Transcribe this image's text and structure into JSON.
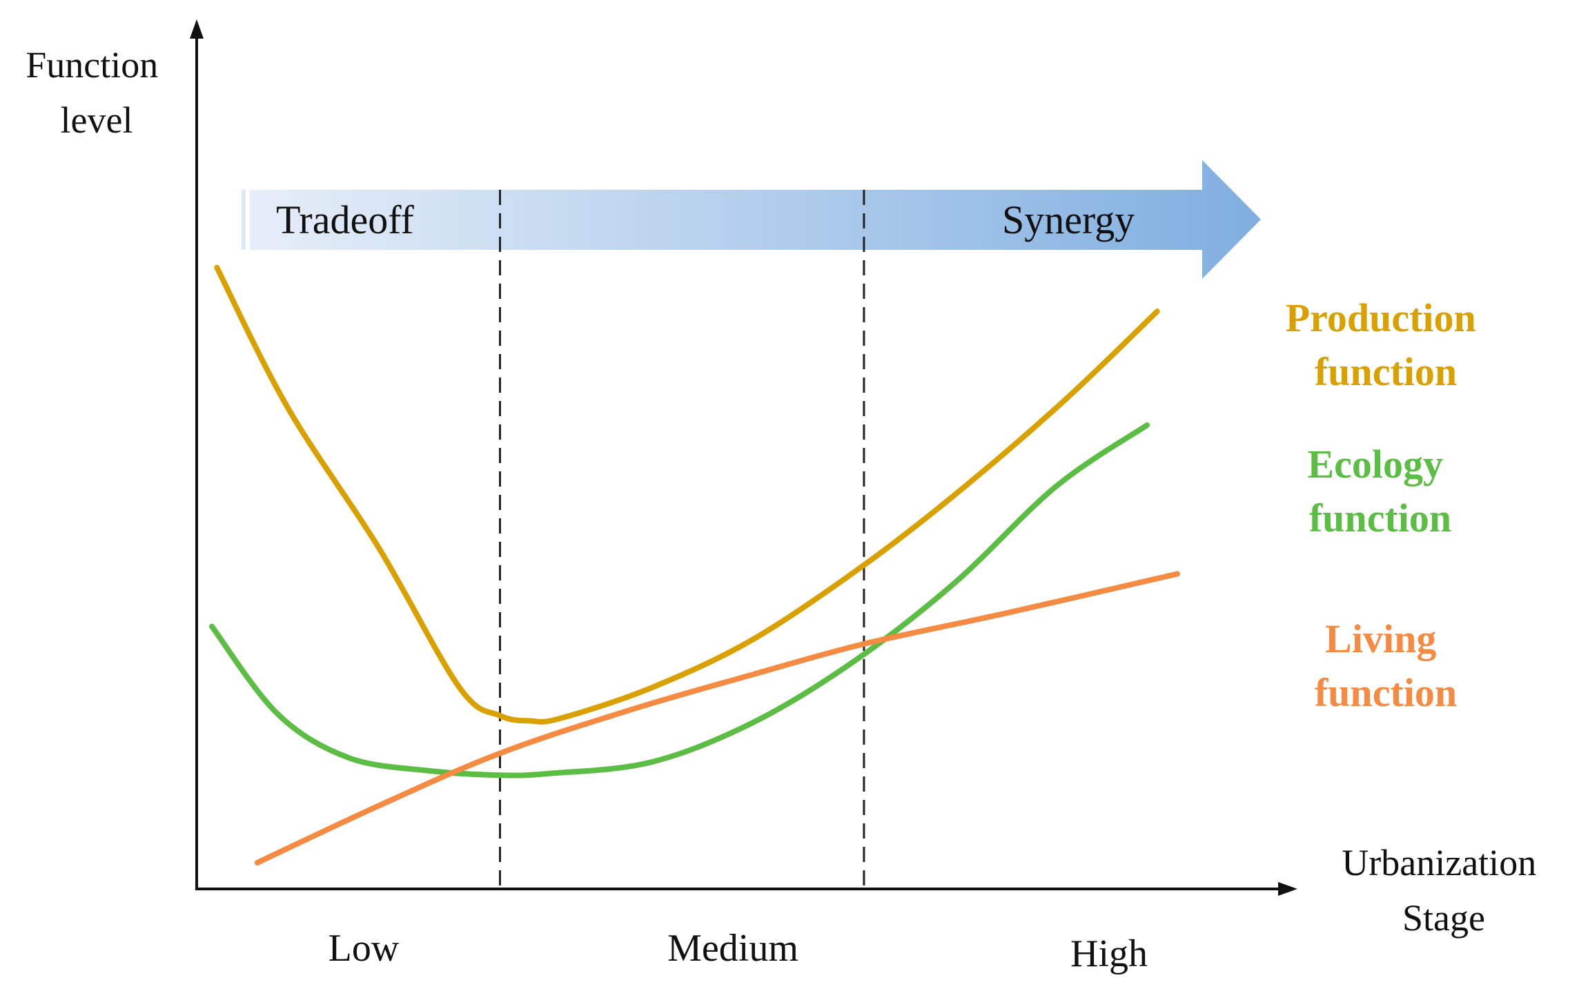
{
  "chart_data": {
    "type": "line",
    "title": "",
    "ylabel": [
      "Function",
      "level"
    ],
    "xlabel": [
      "Urbanization",
      "Stage"
    ],
    "x_categories": [
      "Low",
      "Medium",
      "High"
    ],
    "ylim": [
      0,
      10
    ],
    "xlim": [
      0,
      10
    ],
    "stage_boundaries": [
      3,
      6.6
    ],
    "trend_arrow": {
      "start_label": "Tradeoff",
      "end_label": "Synergy"
    },
    "series": [
      {
        "name": "Production function",
        "label_lines": [
          "Production",
          "function"
        ],
        "color": "#d9a100",
        "points": [
          [
            0.2,
            7.1
          ],
          [
            0.9,
            5.5
          ],
          [
            1.8,
            3.9
          ],
          [
            2.6,
            2.3
          ],
          [
            3.0,
            1.98
          ],
          [
            3.3,
            1.92
          ],
          [
            3.6,
            1.95
          ],
          [
            4.5,
            2.3
          ],
          [
            5.5,
            2.85
          ],
          [
            6.6,
            3.7
          ],
          [
            7.6,
            4.6
          ],
          [
            8.6,
            5.6
          ],
          [
            9.5,
            6.6
          ]
        ]
      },
      {
        "name": "Ecology function",
        "label_lines": [
          "Ecology",
          "function"
        ],
        "color": "#5cbd44",
        "points": [
          [
            0.15,
            3.0
          ],
          [
            0.8,
            2.0
          ],
          [
            1.5,
            1.5
          ],
          [
            2.3,
            1.35
          ],
          [
            3.0,
            1.3
          ],
          [
            3.5,
            1.32
          ],
          [
            4.5,
            1.45
          ],
          [
            5.5,
            1.9
          ],
          [
            6.5,
            2.6
          ],
          [
            7.5,
            3.5
          ],
          [
            8.5,
            4.6
          ],
          [
            9.4,
            5.3
          ]
        ]
      },
      {
        "name": "Living function",
        "label_lines": [
          "Living",
          "function"
        ],
        "color": "#f58a42",
        "points": [
          [
            0.6,
            0.3
          ],
          [
            1.8,
            0.95
          ],
          [
            3.0,
            1.55
          ],
          [
            4.3,
            2.05
          ],
          [
            5.5,
            2.45
          ],
          [
            6.6,
            2.8
          ],
          [
            8.0,
            3.15
          ],
          [
            9.7,
            3.6
          ]
        ]
      }
    ]
  }
}
